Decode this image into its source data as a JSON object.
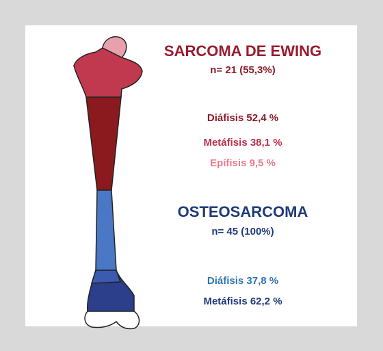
{
  "ewing": {
    "title": "SARCOMA DE EWING",
    "n": "n= 21 (55,3%)",
    "lines": [
      "Diáfisis 52,4 %",
      "Metáfisis 38,1 %",
      "Epífisis 9,5 %"
    ]
  },
  "osteosarcoma": {
    "title": "OSTEOSARCOMA",
    "n": "n= 45 (100%)",
    "lines": [
      "Diáfisis 37,8 %",
      "Metáfisis 62,2 %"
    ]
  }
}
